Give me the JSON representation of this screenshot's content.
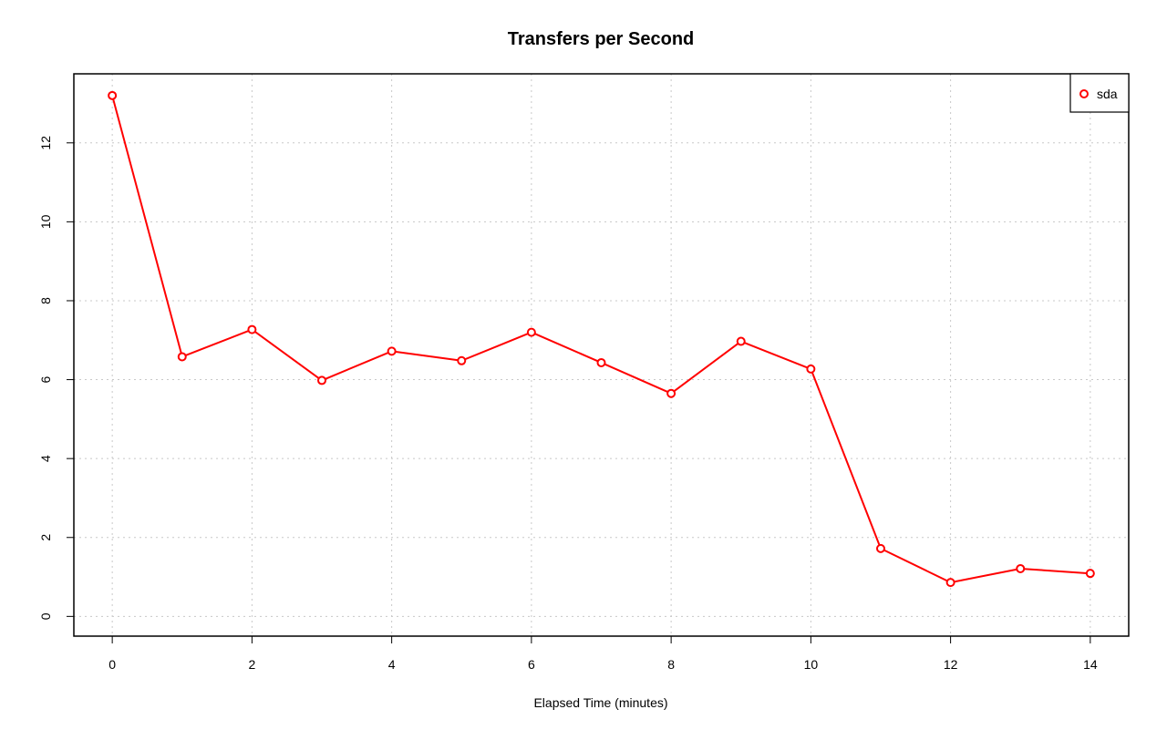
{
  "chart_data": {
    "type": "line",
    "title": "Transfers per Second",
    "xlabel": "Elapsed Time (minutes)",
    "ylabel": "",
    "xlim": [
      -0.55,
      14.55
    ],
    "ylim": [
      -0.5,
      13.75
    ],
    "x_ticks": [
      0,
      2,
      4,
      6,
      8,
      10,
      12,
      14
    ],
    "y_ticks": [
      0,
      2,
      4,
      6,
      8,
      10,
      12
    ],
    "grid": true,
    "legend_position": "top-right",
    "colors": {
      "series": "#ff0000",
      "frame": "#000000",
      "grid": "#c8c8c8"
    },
    "series": [
      {
        "name": "sda",
        "marker": "circle",
        "x": [
          0,
          1,
          2,
          3,
          4,
          5,
          6,
          7,
          8,
          9,
          10,
          11,
          12,
          13,
          14
        ],
        "values": [
          13.2,
          6.58,
          7.27,
          5.98,
          6.72,
          6.48,
          7.2,
          6.43,
          5.65,
          6.97,
          6.27,
          1.72,
          0.86,
          1.21,
          1.09
        ]
      }
    ]
  }
}
